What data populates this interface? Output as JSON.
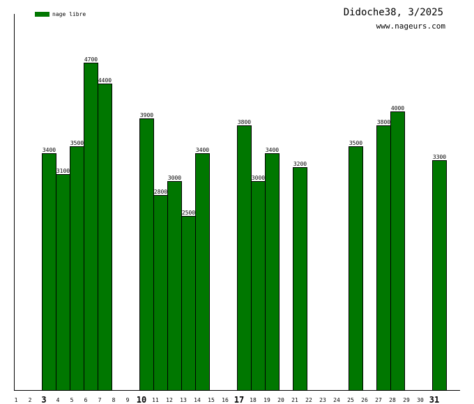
{
  "title": "Didoche38, 3/2025",
  "subtitle": "www.nageurs.com",
  "legend": {
    "label": "nage libre",
    "color": "#007700"
  },
  "chart_data": {
    "type": "bar",
    "title": "Didoche38, 3/2025",
    "xlabel": "",
    "ylabel": "",
    "ylim": [
      0,
      5300
    ],
    "grid": false,
    "legend_position": "top-left",
    "bar_color": "#007700",
    "categories": [
      "1",
      "2",
      "3",
      "4",
      "5",
      "6",
      "7",
      "8",
      "9",
      "10",
      "11",
      "12",
      "13",
      "14",
      "15",
      "16",
      "17",
      "18",
      "19",
      "20",
      "21",
      "22",
      "23",
      "24",
      "25",
      "26",
      "27",
      "28",
      "29",
      "30",
      "31"
    ],
    "bold_categories": [
      "3",
      "10",
      "17",
      "31"
    ],
    "series": [
      {
        "name": "nage libre",
        "values": [
          0,
          0,
          3400,
          3100,
          3500,
          4700,
          4400,
          0,
          0,
          3900,
          2800,
          3000,
          2500,
          3400,
          0,
          0,
          3800,
          3000,
          3400,
          0,
          3200,
          0,
          0,
          0,
          3500,
          0,
          3800,
          4000,
          0,
          0,
          3300
        ]
      }
    ]
  }
}
